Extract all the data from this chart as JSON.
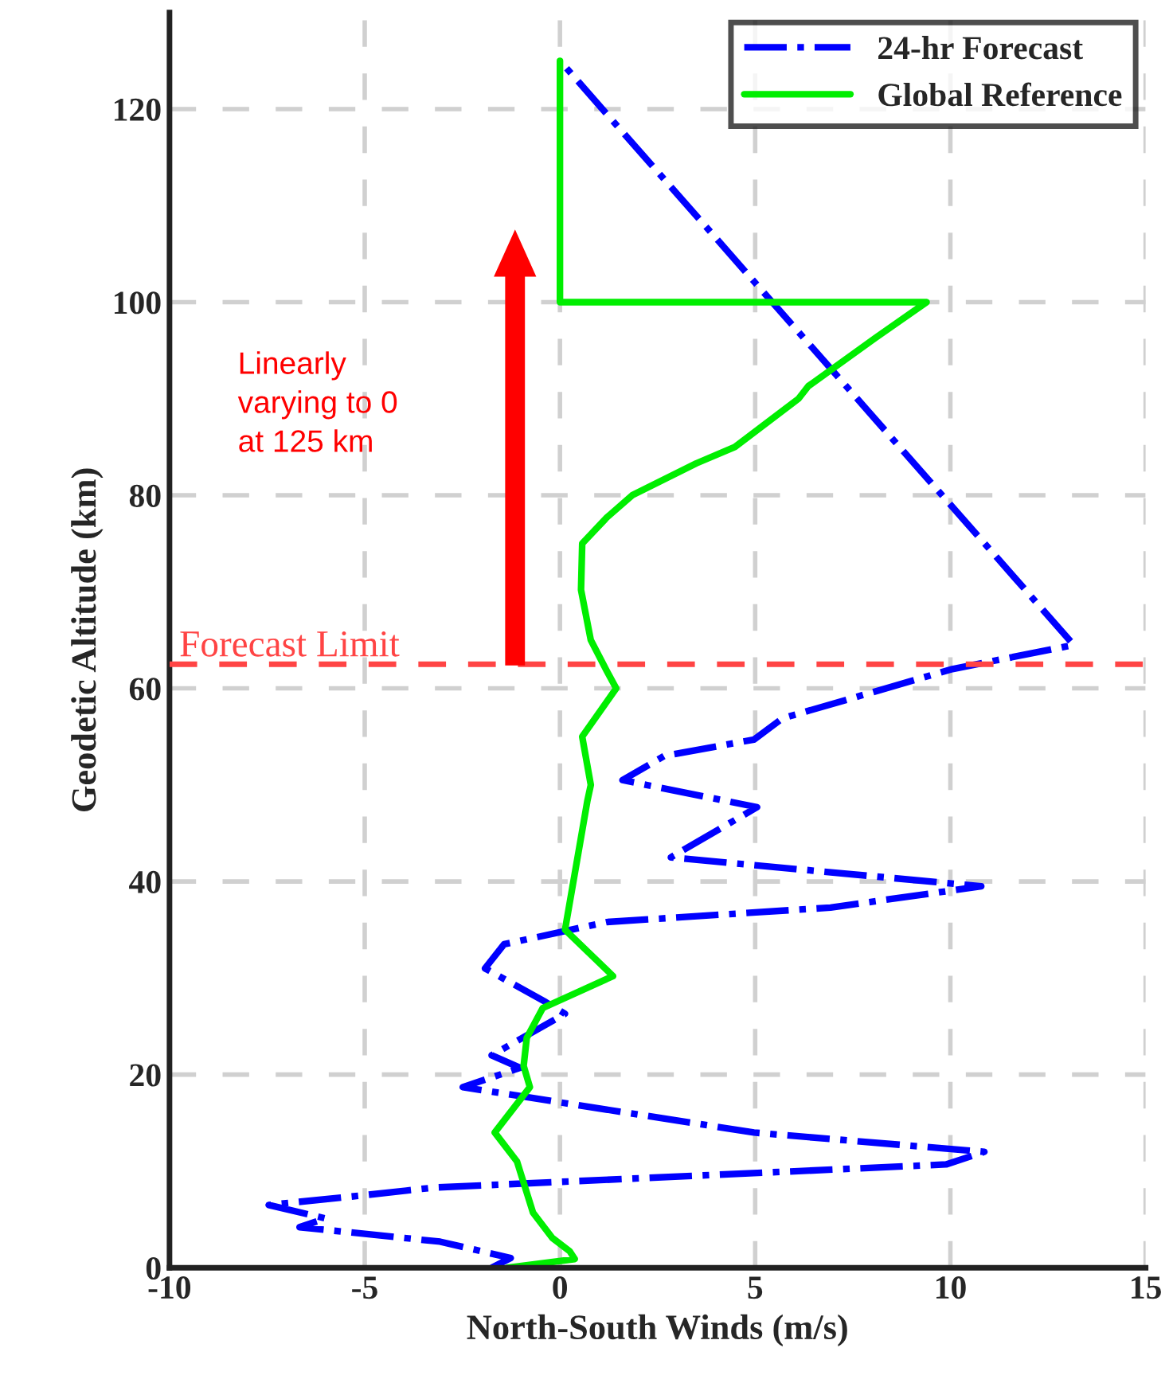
{
  "chart_data": {
    "type": "line",
    "xlabel": "North-South Winds (m/s)",
    "ylabel": "Geodetic Altitude (km)",
    "series": [
      {
        "name": "24-hr Forecast",
        "color": "#0000ff",
        "line_style": "dashdot",
        "x": [
          -1.75,
          -1.26,
          -3.07,
          -6.67,
          -6.0,
          -7.46,
          -5.03,
          -3.23,
          9.89,
          10.87,
          4.97,
          -2.49,
          -1.02,
          -1.75,
          0.13,
          -0.36,
          -1.92,
          -1.43,
          1.2,
          6.93,
          10.79,
          2.84,
          5.05,
          1.6,
          2.67,
          4.97,
          5.7,
          10.05,
          13.16,
          0
        ],
        "values": [
          0,
          1,
          2.7,
          4.2,
          5.1,
          6.5,
          7.5,
          8.3,
          10.7,
          12,
          14,
          18.7,
          20.7,
          22,
          26.3,
          27.5,
          31,
          33.5,
          35.8,
          37.3,
          39.5,
          42.5,
          47.7,
          50.5,
          53,
          54.7,
          56.9,
          62,
          64.5,
          125
        ]
      },
      {
        "name": "Global Reference",
        "color": "#00ee00",
        "line_style": "solid",
        "x": [
          -1.34,
          0.38,
          0.25,
          -0.2,
          -0.69,
          -1.0,
          -1.1,
          -1.67,
          -0.77,
          -0.93,
          -0.85,
          -0.44,
          1.36,
          0.13,
          0.7,
          0.79,
          0.57,
          1.44,
          1.2,
          0.79,
          0.54,
          0.57,
          1.2,
          1.85,
          3.49,
          4.48,
          6.11,
          6.36,
          8.08,
          9.39,
          0,
          0
        ],
        "values": [
          0,
          0.9,
          1.7,
          3.1,
          5.7,
          9.7,
          11,
          14,
          18.7,
          20.9,
          23.8,
          26.9,
          30.2,
          35,
          48.3,
          50,
          55,
          60,
          61.8,
          65,
          70.2,
          75,
          77.7,
          80,
          83.3,
          85,
          90,
          91.3,
          96.3,
          100,
          100,
          125
        ]
      }
    ],
    "xlim": [
      -10,
      15
    ],
    "xticks": [
      -10,
      -5,
      0,
      5,
      10,
      15
    ],
    "ylim": [
      0,
      130
    ],
    "yticks": [
      0,
      20,
      40,
      60,
      80,
      100,
      120
    ],
    "ref_lines": [
      {
        "axis": "y",
        "value": 62.5,
        "label": "Forecast Limit",
        "color": "#ff4444",
        "line_style": "dashed"
      }
    ],
    "annotations": [
      "Linearly\nvarying to 0\nat 125 km"
    ],
    "grid": true,
    "legend": "top right"
  }
}
